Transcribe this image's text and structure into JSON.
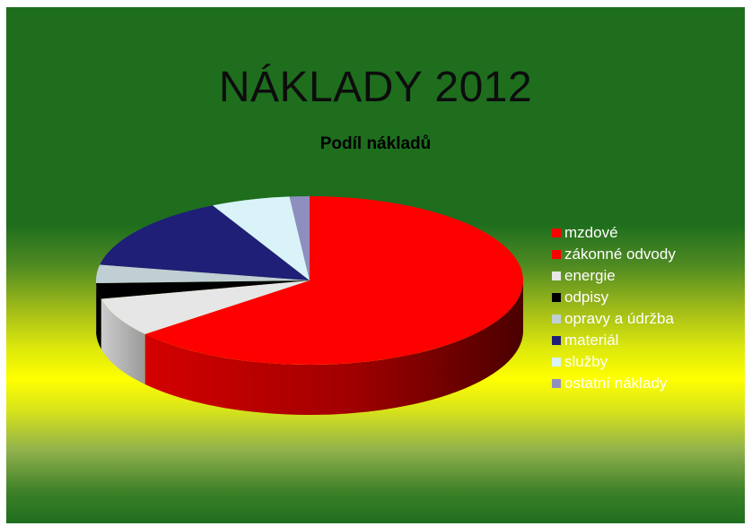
{
  "slide_title": "NÁKLADY 2012",
  "chart_data": {
    "type": "pie",
    "title": "Podíl nákladů",
    "legend_position": "right",
    "unit": "percent",
    "series": [
      {
        "name": "mzdové",
        "value": 64.0,
        "color": "#ff0000"
      },
      {
        "name": "zákonné odvody",
        "value": 0.0,
        "color": "#ff0000"
      },
      {
        "name": "energie",
        "value": 7.5,
        "color": "#e6e6e6"
      },
      {
        "name": "odpisy",
        "value": 3.0,
        "color": "#000000"
      },
      {
        "name": "opravy a údržba",
        "value": 3.5,
        "color": "#bfcfd3"
      },
      {
        "name": "materiál",
        "value": 14.5,
        "color": "#1f1f78"
      },
      {
        "name": "služby",
        "value": 6.0,
        "color": "#d9f3f8"
      },
      {
        "name": "ostatní náklady",
        "value": 1.5,
        "color": "#8f8fbf"
      }
    ]
  }
}
